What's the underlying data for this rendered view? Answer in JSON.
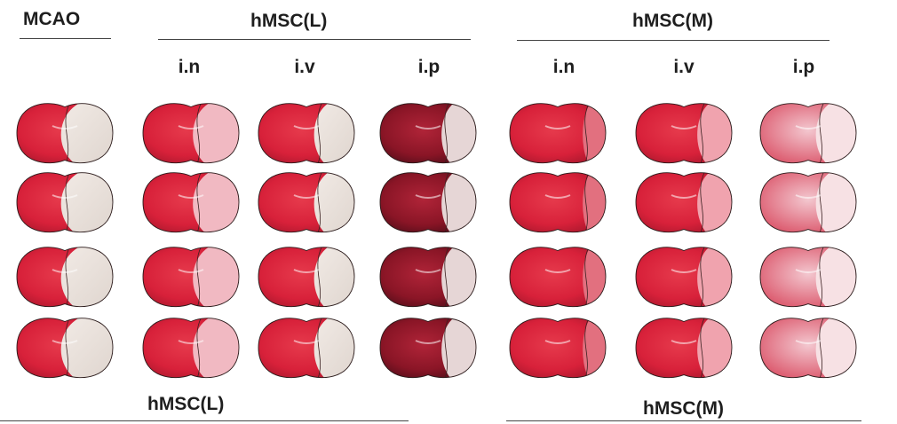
{
  "headers": {
    "mcao": "MCAO",
    "hmsc_l": "hMSC(L)",
    "hmsc_m": "hMSC(M)"
  },
  "columns_l": [
    "i.n",
    "i.v",
    "i.p"
  ],
  "columns_m": [
    "i.n",
    "i.v",
    "i.p"
  ],
  "footer": {
    "left": "hMSC(L)",
    "right": "hMSC(M)"
  },
  "colors": {
    "healthy_red": "#e0283c",
    "infarct_pale": "#ece2dc",
    "dark_tissue": "#8a1526",
    "outline": "#2a1a1a"
  },
  "grid": {
    "rows": 4,
    "columns": 7,
    "description_note": "TTC-stained coronal brain slices; pale area = infarct"
  }
}
